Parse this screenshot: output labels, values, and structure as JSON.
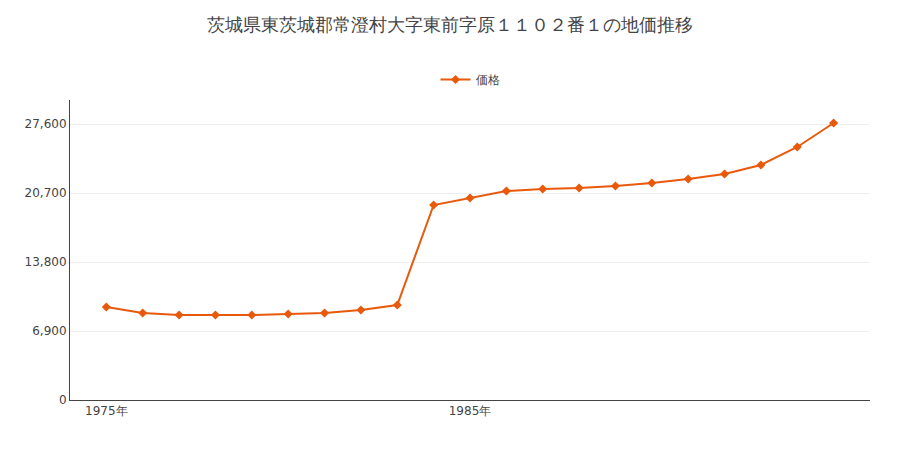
{
  "chart_data": {
    "type": "line",
    "title": "茨城県東茨城郡常澄村大字東前字原１１０２番１の地価推移",
    "x": [
      1975,
      1976,
      1977,
      1978,
      1979,
      1980,
      1981,
      1982,
      1983,
      1984,
      1985,
      1986,
      1987,
      1988,
      1989,
      1990,
      1991,
      1992,
      1993,
      1994,
      1995
    ],
    "series": [
      {
        "name": "価格",
        "color": "#E8590C",
        "marker": "diamond",
        "values": [
          9300,
          8700,
          8500,
          8500,
          8500,
          8600,
          8700,
          9000,
          9500,
          19500,
          20200,
          20900,
          21100,
          21200,
          21400,
          21700,
          22100,
          22600,
          23500,
          25300,
          27700
        ]
      }
    ],
    "xlim": [
      1974,
      1996
    ],
    "xticks": [
      {
        "value": 1975,
        "label": "1975年"
      },
      {
        "value": 1985,
        "label": "1985年"
      }
    ],
    "ylim": [
      0,
      30000
    ],
    "yticks": [
      0,
      {
        "value": 6900,
        "label": "6,900"
      },
      {
        "value": 13800,
        "label": "13,800"
      },
      {
        "value": 20700,
        "label": "20,700"
      },
      {
        "value": 27600,
        "label": "27,600"
      }
    ],
    "grid": "y",
    "legend": "top"
  }
}
